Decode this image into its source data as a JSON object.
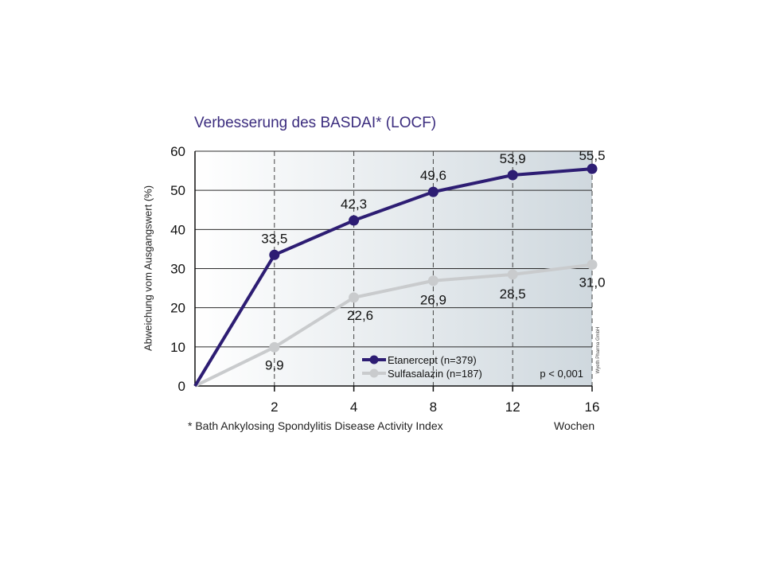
{
  "chart_data": {
    "type": "line",
    "title": "Verbesserung des BASDAI* (LOCF)",
    "ylabel": "Abweichung vom Ausgangswert (%)",
    "xlabel": "Wochen",
    "categories": [
      "0",
      "2",
      "4",
      "8",
      "12",
      "16"
    ],
    "x_tick_labels": [
      "2",
      "4",
      "8",
      "12",
      "16"
    ],
    "ylim": [
      0,
      60
    ],
    "yticks": [
      0,
      10,
      20,
      30,
      40,
      50,
      60
    ],
    "grid": "horizontal solid, vertical dashed at each x tick",
    "legend_position": "bottom-right",
    "series": [
      {
        "name": "Etanercept (n=379)",
        "color": "#2d1d73",
        "values": [
          0,
          33.5,
          42.3,
          49.6,
          53.9,
          55.5
        ],
        "labels": [
          "",
          "33,5",
          "42,3",
          "49,6",
          "53,9",
          "55,5"
        ]
      },
      {
        "name": "Sulfasalazin (n=187)",
        "color": "#c9cbcd",
        "values": [
          0,
          9.9,
          22.6,
          26.9,
          28.5,
          31.0
        ],
        "labels": [
          "",
          "9,9",
          "22,6",
          "26,9",
          "28,5",
          "31,0"
        ]
      }
    ],
    "annotation": "p < 0,001",
    "footnote": "* Bath Ankylosing Spondylitis Disease Activity Index",
    "watermark": "Wyeth Pharma GmbH"
  }
}
